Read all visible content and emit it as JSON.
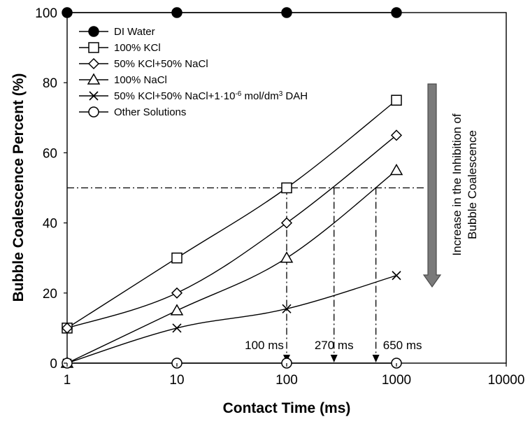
{
  "chart_data": {
    "type": "line",
    "xlabel": "Contact Time (ms)",
    "ylabel": "Bubble Coalescence Percent (%)",
    "x_scale": "log",
    "xlim": [
      1,
      10000
    ],
    "ylim": [
      0,
      100
    ],
    "x_ticks": [
      "1",
      "10",
      "100",
      "1000",
      "10000"
    ],
    "y_ticks": [
      "0",
      "20",
      "40",
      "60",
      "80",
      "100"
    ],
    "grid": false,
    "legend_position": "top-left",
    "x": [
      1,
      10,
      100,
      1000
    ],
    "series": [
      {
        "name": "DI Water",
        "marker": "filled-circle",
        "values": [
          100,
          100,
          100,
          100
        ]
      },
      {
        "name": "100% KCl",
        "marker": "open-square",
        "values": [
          10,
          30,
          50,
          75
        ]
      },
      {
        "name": "50% KCl+50% NaCl",
        "marker": "open-diamond",
        "values": [
          10,
          20,
          40,
          65
        ]
      },
      {
        "name": "100% NaCl",
        "marker": "open-triangle",
        "values": [
          0,
          15,
          30,
          55
        ]
      },
      {
        "name": "50% KCl+50% NaCl+1·10⁻⁶ mol/dm³ DAH",
        "marker": "cross",
        "values": [
          0,
          10,
          15.5,
          25
        ]
      },
      {
        "name": "Other Solutions",
        "marker": "open-circle",
        "values": [
          0,
          0,
          0,
          0
        ]
      }
    ],
    "reference_line": {
      "y": 50
    },
    "annotations": [
      {
        "text": "100 ms",
        "x": 100
      },
      {
        "text": "270 ms",
        "x": 270
      },
      {
        "text": "650 ms",
        "x": 650
      }
    ],
    "arrow_note": [
      "Increase in the Inhibition of",
      "Bubble Coalescence"
    ],
    "colors": {
      "line": "#000000",
      "arrow": "#7a7a7a",
      "arrow_border": "#4a4a4a"
    }
  }
}
